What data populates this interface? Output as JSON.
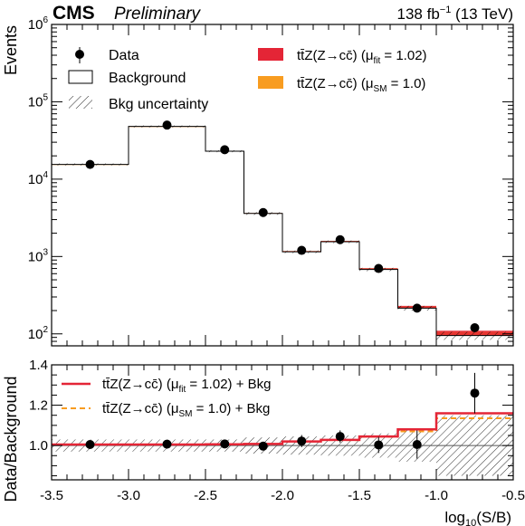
{
  "header": {
    "experiment": "CMS",
    "status": "Preliminary",
    "lumi_value": "138 fb",
    "lumi_exp": "−1",
    "energy": " (13 TeV)"
  },
  "colors": {
    "signal_fit": "#e42536",
    "signal_sm": "#f89c20",
    "ratio_fit_line": "#e42536",
    "ratio_sm_line": "#f89c20"
  },
  "chart_data": [
    {
      "type": "bar",
      "panel": "main",
      "ylabel": "Events",
      "yscale": "log",
      "ylim": [
        70,
        1000000
      ],
      "yticks": [
        100,
        1000,
        10000,
        100000,
        1000000
      ],
      "ytick_labels": [
        {
          "base": "10",
          "exp": "2"
        },
        {
          "base": "10",
          "exp": "3"
        },
        {
          "base": "10",
          "exp": "4"
        },
        {
          "base": "10",
          "exp": "5"
        },
        {
          "base": "10",
          "exp": "6"
        }
      ],
      "xlim": [
        -3.5,
        -0.5
      ],
      "bin_edges": [
        -3.5,
        -3.0,
        -2.5,
        -2.25,
        -2.0,
        -1.75,
        -1.5,
        -1.25,
        -1.0,
        -0.5
      ],
      "background": [
        15500,
        48000,
        23000,
        3600,
        1150,
        1550,
        680,
        215,
        95
      ],
      "bkg_unc_rel": [
        0.03,
        0.03,
        0.03,
        0.04,
        0.04,
        0.04,
        0.05,
        0.07,
        0.12
      ],
      "signal_fit": [
        5,
        25,
        60,
        40,
        25,
        40,
        25,
        15,
        15
      ],
      "signal_sm": [
        5,
        25,
        60,
        40,
        25,
        40,
        25,
        13,
        12
      ],
      "data_x": [
        -3.25,
        -2.75,
        -2.375,
        -2.125,
        -1.875,
        -1.625,
        -1.375,
        -1.125,
        -0.75
      ],
      "data_y": [
        15500,
        50000,
        24000,
        3700,
        1200,
        1650,
        700,
        215,
        120
      ],
      "legend": [
        {
          "kind": "data",
          "label": "Data"
        },
        {
          "kind": "box",
          "label": "Background"
        },
        {
          "kind": "hatch",
          "label": "Bkg uncertainty"
        },
        {
          "kind": "fill_fit",
          "text": "tt̄Z(Z→cc̄) (μ",
          "sub": "fit",
          "tail": " = 1.02)"
        },
        {
          "kind": "fill_sm",
          "text": "tt̄Z(Z→cc̄) (μ",
          "sub": "SM",
          "tail": " = 1.0)"
        }
      ]
    },
    {
      "type": "line",
      "panel": "ratio",
      "xlabel_main": "log",
      "xlabel_sub": "10",
      "xlabel_tail": "(S/B)",
      "ylabel": "Data/Background",
      "ylim": [
        0.83,
        1.4
      ],
      "yticks": [
        1.0,
        1.2,
        1.4
      ],
      "ytick_labels": [
        "1.0",
        "1.2",
        "1.4"
      ],
      "xticks": [
        -3.5,
        -3.0,
        -2.5,
        -2.0,
        -1.5,
        -1.0,
        -0.5
      ],
      "xtick_labels": [
        "-3.5",
        "-3.0",
        "-2.5",
        "-2.0",
        "-1.5",
        "-1.0",
        "-0.5"
      ],
      "ratio_fit": [
        1.005,
        1.005,
        1.006,
        1.008,
        1.02,
        1.028,
        1.045,
        1.08,
        1.16
      ],
      "ratio_sm": [
        1.005,
        1.005,
        1.006,
        1.008,
        1.02,
        1.027,
        1.043,
        1.07,
        1.135
      ],
      "ratio_unc_rel": [
        0.03,
        0.03,
        0.03,
        0.04,
        0.045,
        0.05,
        0.06,
        0.08,
        0.15
      ],
      "data_y": [
        1.005,
        1.007,
        1.008,
        0.997,
        1.022,
        1.045,
        1.003,
        1.005,
        1.26
      ],
      "data_err": [
        0.01,
        0.005,
        0.008,
        0.018,
        0.03,
        0.03,
        0.04,
        0.07,
        0.1
      ],
      "legend": [
        {
          "kind": "line_fit",
          "text": "tt̄Z(Z→cc̄) (μ",
          "sub": "fit",
          "tail": " = 1.02) + Bkg"
        },
        {
          "kind": "line_sm",
          "text": "tt̄Z(Z→cc̄) (μ",
          "sub": "SM",
          "tail": " = 1.0) + Bkg"
        }
      ]
    }
  ]
}
